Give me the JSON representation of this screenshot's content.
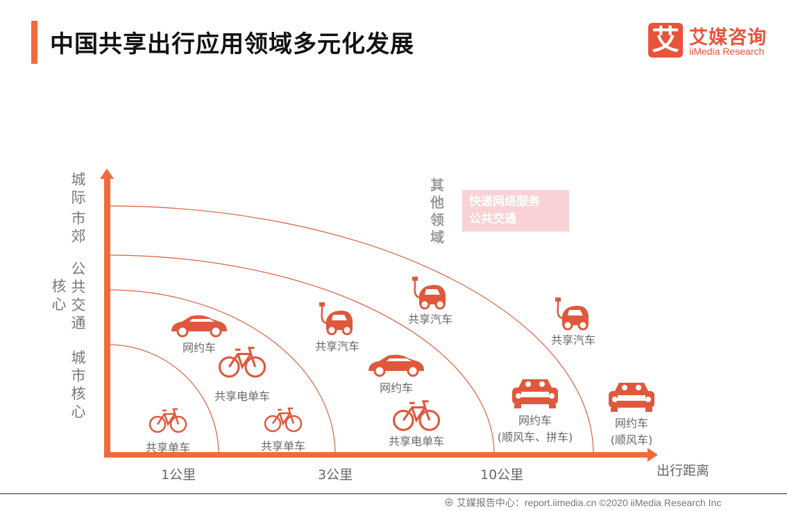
{
  "header": {
    "title": "中国共享出行应用领域多元化发展",
    "logo_mark": "艾",
    "logo_cn": "艾媒咨询",
    "logo_en": "iiMedia Research"
  },
  "y_axis": {
    "labels": [
      "城际",
      "市郊",
      "公共交通",
      "核心",
      "城市核心"
    ]
  },
  "x_axis": {
    "labels": [
      "1公里",
      "3公里",
      "10公里"
    ],
    "title": "出行距离"
  },
  "other": {
    "label": "其他领域",
    "items": [
      "快递网络服务",
      "公共交通"
    ]
  },
  "items": [
    {
      "label": "网约车",
      "icon": "car-icon"
    },
    {
      "label": "共享电单车",
      "icon": "ebike-icon"
    },
    {
      "label": "共享单车",
      "icon": "bike-icon"
    },
    {
      "label": "共享单车",
      "icon": "bike-icon"
    },
    {
      "label": "共享汽车",
      "icon": "electric-car-icon"
    },
    {
      "label": "网约车",
      "icon": "car-icon"
    },
    {
      "label": "共享电单车",
      "icon": "ebike-icon"
    },
    {
      "label": "共享汽车",
      "icon": "electric-car-icon"
    },
    {
      "label": "网约车",
      "sub": "(顺风车、拼车)",
      "icon": "carpool-icon"
    },
    {
      "label": "共享汽车",
      "icon": "electric-car-icon"
    },
    {
      "label": "网约车",
      "sub": "(顺风车)",
      "icon": "carpool-icon"
    }
  ],
  "colors": {
    "accent": "#f26a3c",
    "icon": "#e0583c"
  },
  "footer": {
    "text": "艾媒报告中心：report.iimedia.cn ©2020  iiMedia Research  Inc"
  }
}
